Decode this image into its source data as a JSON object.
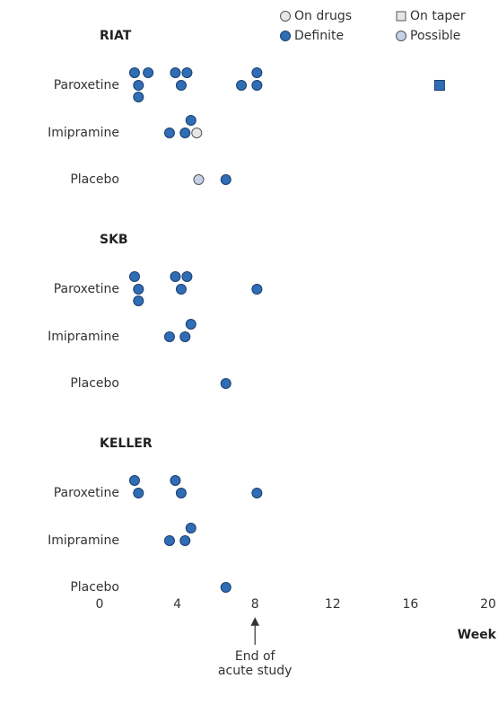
{
  "chart_data": [
    {
      "type": "dot",
      "title": "RIAT",
      "categories": [
        "Paroxetine",
        "Imipramine",
        "Placebo"
      ],
      "xlim": [
        0,
        20
      ],
      "series": [
        {
          "name": "On drugs",
          "color": "#e6e6e6",
          "marker": "circle",
          "values": [
            [],
            [
              5.0
            ],
            []
          ]
        },
        {
          "name": "On taper",
          "color": "#2f6db5",
          "marker": "square",
          "values": [
            [
              17.5
            ],
            [],
            []
          ]
        },
        {
          "name": "Definite",
          "color": "#2f6db5",
          "marker": "circle",
          "values": [
            [
              2.0,
              2.5,
              4.2,
              7.3,
              8.1,
              1.8,
              3.9,
              8.1,
              2.0,
              4.5
            ],
            [
              3.6,
              4.4,
              4.7
            ],
            [
              6.5
            ]
          ]
        },
        {
          "name": "Possible",
          "color": "#c5d0ea",
          "marker": "circle",
          "values": [
            [],
            [],
            [
              5.1
            ]
          ]
        }
      ]
    },
    {
      "type": "dot",
      "title": "SKB",
      "categories": [
        "Paroxetine",
        "Imipramine",
        "Placebo"
      ],
      "xlim": [
        0,
        20
      ],
      "series": [
        {
          "name": "Definite",
          "color": "#2f6db5",
          "marker": "circle",
          "values": [
            [
              2.0,
              4.2,
              8.1,
              1.8,
              3.9,
              2.0,
              4.5
            ],
            [
              3.6,
              4.4,
              4.7
            ],
            [
              6.5
            ]
          ]
        }
      ]
    },
    {
      "type": "dot",
      "title": "KELLER",
      "categories": [
        "Paroxetine",
        "Imipramine",
        "Placebo"
      ],
      "xlim": [
        0,
        20
      ],
      "xticks": [
        0,
        4,
        8,
        12,
        16,
        20
      ],
      "xlabel": "Week",
      "annotation": {
        "x": 8,
        "text": [
          "End of",
          "acute study"
        ]
      },
      "series": [
        {
          "name": "Definite",
          "color": "#2f6db5",
          "marker": "circle",
          "values": [
            [
              2.0,
              4.2,
              8.1,
              1.8,
              3.9
            ],
            [
              3.6,
              4.4,
              4.7
            ],
            [
              6.5
            ]
          ]
        }
      ]
    }
  ]
}
